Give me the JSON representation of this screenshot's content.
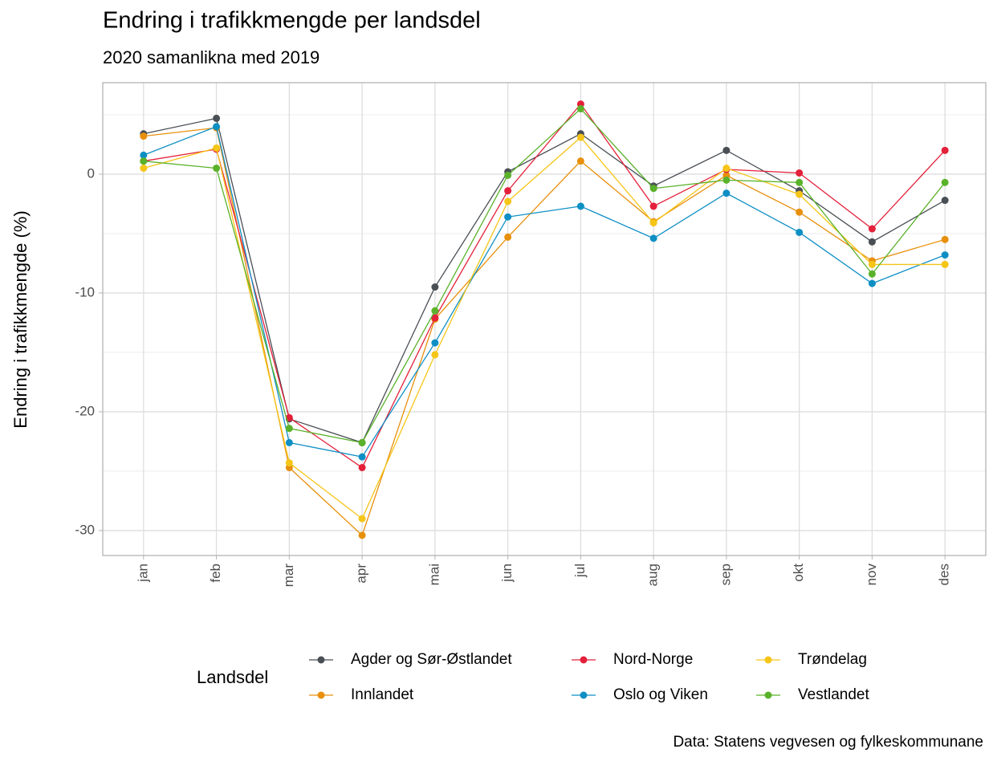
{
  "chart_data": {
    "type": "line",
    "title": "Endring i trafikkmengde per landsdel",
    "subtitle": "2020 samanlikna med 2019",
    "y_label": "Endring i trafikkmengde (%)",
    "caption": "Data: Statens vegvesen og fylkeskommunane",
    "legend_title": "Landsdel",
    "categories": [
      "jan",
      "feb",
      "mar",
      "apr",
      "mai",
      "jun",
      "jul",
      "aug",
      "sep",
      "okt",
      "nov",
      "des"
    ],
    "series": [
      {
        "name": "Agder og Sør-Østlandet",
        "color": "#4a4f55",
        "values": [
          3.4,
          4.7,
          -20.6,
          -22.6,
          -9.5,
          0.2,
          3.4,
          -1.0,
          2.0,
          -1.4,
          -5.7,
          -2.2
        ]
      },
      {
        "name": "Innlandet",
        "color": "#e8900c",
        "values": [
          3.2,
          3.9,
          -24.7,
          -30.4,
          -12.2,
          -5.3,
          1.1,
          -4.0,
          -0.1,
          -3.2,
          -7.3,
          -5.5
        ]
      },
      {
        "name": "Nord-Norge",
        "color": "#e4203a",
        "values": [
          1.1,
          2.1,
          -20.5,
          -24.7,
          -12.1,
          -1.4,
          5.9,
          -2.7,
          0.4,
          0.1,
          -4.6,
          2.0
        ]
      },
      {
        "name": "Oslo og Viken",
        "color": "#0e8fc4",
        "values": [
          1.6,
          4.0,
          -22.6,
          -23.8,
          -14.2,
          -3.6,
          -2.7,
          -5.4,
          -1.6,
          -4.9,
          -9.2,
          -6.8
        ]
      },
      {
        "name": "Trøndelag",
        "color": "#f5c518",
        "values": [
          0.5,
          2.2,
          -24.3,
          -29.0,
          -15.2,
          -2.3,
          3.1,
          -4.1,
          0.5,
          -1.7,
          -7.6,
          -7.6
        ]
      },
      {
        "name": "Vestlandet",
        "color": "#5ab22a",
        "values": [
          1.1,
          0.5,
          -21.4,
          -22.6,
          -11.5,
          -0.1,
          5.5,
          -1.2,
          -0.5,
          -0.7,
          -8.4,
          -0.7
        ]
      }
    ],
    "ylim": [
      -32.1,
      7.7
    ],
    "yticks": [
      -30,
      -20,
      -10,
      0
    ],
    "grid": true,
    "legend": "bottom"
  }
}
